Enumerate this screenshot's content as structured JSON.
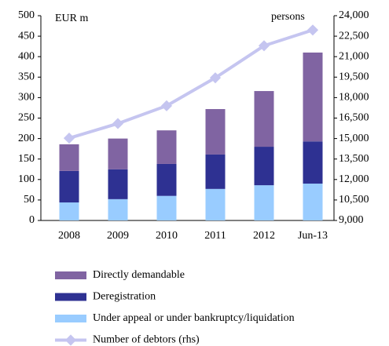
{
  "chart_data": {
    "type": "bar",
    "annotations": [
      "EUR m",
      "persons"
    ],
    "categories": [
      "2008",
      "2009",
      "2010",
      "2011",
      "2012",
      "Jun-13"
    ],
    "series": [
      {
        "name": "Under appeal or under bankruptcy/liquidation",
        "color": "#99ccff",
        "values": [
          44,
          52,
          60,
          77,
          86,
          90
        ]
      },
      {
        "name": "Deregistration",
        "color": "#2e3192",
        "values": [
          77,
          73,
          78,
          84,
          94,
          103
        ]
      },
      {
        "name": "Directly demandable",
        "color": "#8064a2",
        "values": [
          65,
          75,
          82,
          111,
          136,
          217
        ]
      },
      {
        "name": "Number of debtors (rhs)",
        "color": "#c5c5f0",
        "axis": "y2",
        "type": "line",
        "values": [
          15030,
          16100,
          17400,
          19450,
          21800,
          22950
        ]
      }
    ],
    "ylim": [
      0,
      500
    ],
    "yticks": [
      0,
      50,
      100,
      150,
      200,
      250,
      300,
      350,
      400,
      450,
      500
    ],
    "y2lim": [
      9000,
      24000
    ],
    "y2ticks": [
      {
        "value": 9000,
        "label": "9,000"
      },
      {
        "value": 10500,
        "label": "10,500"
      },
      {
        "value": 12000,
        "label": "12,000"
      },
      {
        "value": 13500,
        "label": "13,500"
      },
      {
        "value": 15000,
        "label": "15,000"
      },
      {
        "value": 16500,
        "label": "16,500"
      },
      {
        "value": 18000,
        "label": "18,000"
      },
      {
        "value": 19500,
        "label": "19,500"
      },
      {
        "value": 21000,
        "label": "21,000"
      },
      {
        "value": 22500,
        "label": "22,500"
      },
      {
        "value": 24000,
        "label": "24,000"
      }
    ]
  }
}
